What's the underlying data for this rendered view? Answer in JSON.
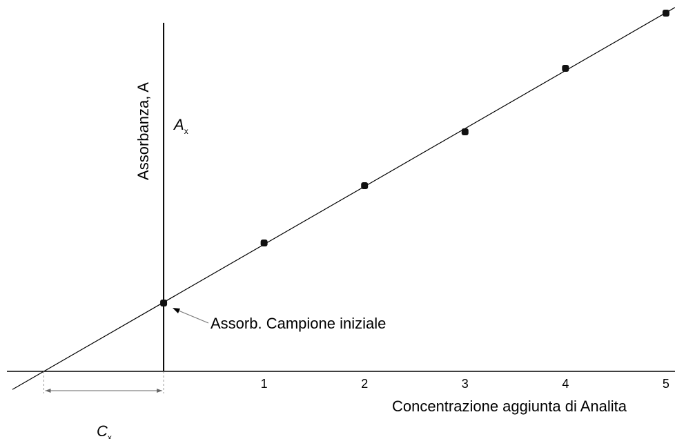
{
  "chart_data": {
    "type": "scatter",
    "x_label": "Concentrazione aggiunta di Analita",
    "y_label": "Assorbanza, A",
    "x": [
      0,
      1,
      2,
      3,
      4,
      5
    ],
    "values": [
      0.198,
      0.372,
      0.538,
      0.694,
      0.878,
      1.038
    ],
    "color": "#111111",
    "xlim": [
      -1.56,
      5.09
    ],
    "xticks": [
      1,
      2,
      3,
      4,
      5
    ],
    "ylim": [
      0,
      1.01
    ],
    "annotations": [
      {
        "text": "A",
        "sub": "x"
      },
      {
        "text": "C",
        "sub": "x"
      },
      {
        "text": "Assorb. Campione iniziale"
      }
    ]
  }
}
